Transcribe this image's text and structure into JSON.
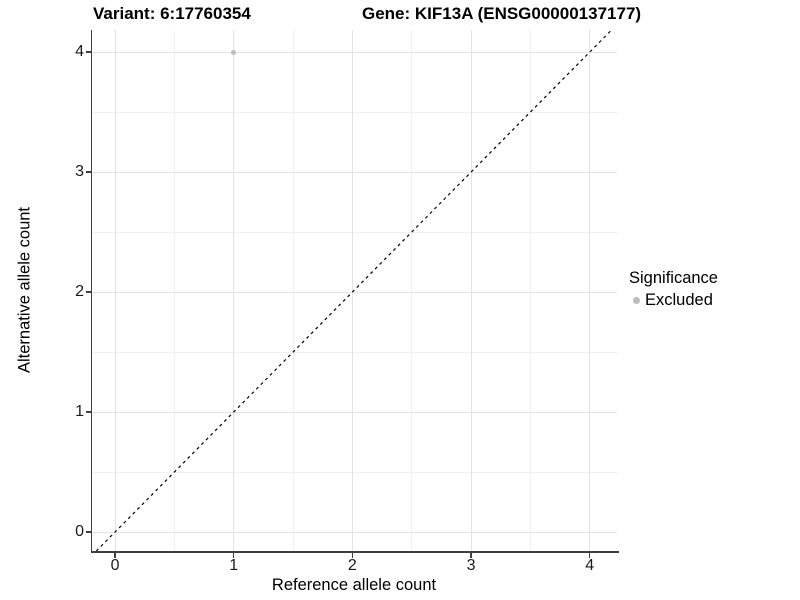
{
  "chart_data": {
    "type": "scatter",
    "title_left": "Variant: 6:17760354",
    "title_right": "Gene: KIF13A (ENSG00000137177)",
    "xlabel": "Reference allele count",
    "ylabel": "Alternative allele count",
    "xlim": [
      -0.194,
      4.23
    ],
    "ylim": [
      -0.158,
      4.184
    ],
    "xticks": [
      0,
      1,
      2,
      3,
      4
    ],
    "yticks": [
      0,
      1,
      2,
      3,
      4
    ],
    "x_minor": [
      0.5,
      1.5,
      2.5,
      3.5
    ],
    "y_minor": [
      0.5,
      1.5,
      2.5,
      3.5
    ],
    "grid": true,
    "legend_position": "right",
    "points": [
      {
        "x": 1,
        "y": 4,
        "series": "Excluded"
      }
    ],
    "reference_line": {
      "slope": 1,
      "intercept": 0,
      "style": "dashed",
      "color": "#000000"
    },
    "legend": {
      "title": "Significance",
      "items": [
        {
          "label": "Excluded",
          "color": "#bdbdbd",
          "marker": "circle-icon"
        }
      ]
    },
    "colors": {
      "point_excluded": "#bdbdbd",
      "grid_major": "#e3e3e3",
      "grid_minor": "#f0f0f0",
      "axis_line": "#3f3f3f",
      "background": "#ffffff"
    }
  }
}
